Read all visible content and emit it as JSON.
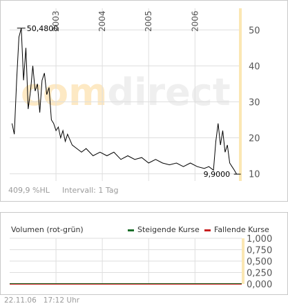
{
  "colors": {
    "line": "#000000",
    "grid": "#dedede",
    "axis_band": "#fbe7b3",
    "rising": "#1b6e2a",
    "falling": "#c81e1e",
    "watermark": "#efefef",
    "watermark_accent": "#fde9c4"
  },
  "watermark": {
    "part1": "com",
    "part2": "direct"
  },
  "price_meta": {
    "range_label": "409,9 %HL",
    "interval_label": "Intervall: 1 Tag"
  },
  "annotations": {
    "high_label": "50,4800",
    "low_label": "9,9000"
  },
  "volume": {
    "title": "Volumen (rot-grün)",
    "legend_rising": "Steigende Kurse",
    "legend_falling": "Fallende Kurse"
  },
  "footer": {
    "date": "22.11.06",
    "time": "17:12 Uhr"
  },
  "chart_data": [
    {
      "type": "line",
      "x_ticks": [
        "2003",
        "2004",
        "2005",
        "2006"
      ],
      "y_ticks": [
        "10",
        "20",
        "30",
        "40",
        "50"
      ],
      "ylim": [
        8,
        56
      ],
      "xlim": [
        2002.0,
        2006.95
      ],
      "y_axis_position": "right",
      "grid": true,
      "series": [
        {
          "x": [
            2002.05,
            2002.1,
            2002.15,
            2002.2,
            2002.25,
            2002.3,
            2002.35,
            2002.4,
            2002.45,
            2002.5,
            2002.55,
            2002.6,
            2002.65,
            2002.7,
            2002.75,
            2002.8,
            2002.85,
            2002.9,
            2002.95,
            2003.0,
            2003.05,
            2003.1,
            2003.15,
            2003.2,
            2003.25,
            2003.35,
            2003.45,
            2003.55,
            2003.65,
            2003.8,
            2003.95,
            2004.1,
            2004.25,
            2004.4,
            2004.55,
            2004.7,
            2004.85,
            2005.0,
            2005.15,
            2005.3,
            2005.45,
            2005.6,
            2005.75,
            2005.9,
            2006.05,
            2006.2,
            2006.3,
            2006.4,
            2006.45,
            2006.5,
            2006.55,
            2006.6,
            2006.65,
            2006.7,
            2006.75,
            2006.8,
            2006.85,
            2006.9
          ],
          "y": [
            24,
            21,
            36,
            48,
            50.48,
            36,
            45,
            28,
            33,
            40,
            33,
            35,
            27,
            36,
            38,
            32,
            34,
            25,
            24,
            22,
            23,
            20,
            22,
            19,
            21,
            18,
            17,
            16,
            17,
            15,
            16,
            15,
            16,
            14,
            15,
            14,
            14.5,
            13,
            14,
            13,
            12.5,
            13,
            12,
            13,
            12,
            11.5,
            12,
            11,
            19,
            24,
            18,
            22,
            16,
            18,
            13,
            12,
            11,
            9.9
          ]
        }
      ]
    },
    {
      "type": "bar",
      "title": "Volumen (rot-grün)",
      "y_ticks": [
        "0,000",
        "0,250",
        "0,500",
        "0,750",
        "1,000"
      ],
      "ylim": [
        0,
        1
      ],
      "y_axis_position": "right",
      "grid": true,
      "series": [
        {
          "name": "Steigende Kurse",
          "values": [
            0
          ]
        },
        {
          "name": "Fallende Kurse",
          "values": [
            0
          ]
        }
      ]
    }
  ]
}
